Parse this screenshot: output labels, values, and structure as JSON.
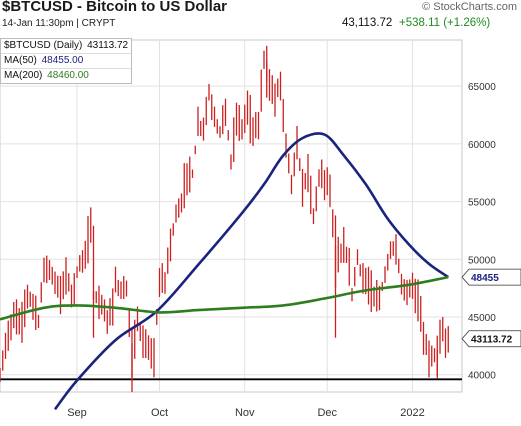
{
  "header": {
    "title": "$BTCUSD - Bitcoin to US Dollar",
    "brand": "© StockCharts.com",
    "date_line": "14-Jan 11:30pm | CRYPT",
    "last_price": "43,113.72",
    "change": "+538.11 (+1.26%)"
  },
  "legend": {
    "main_label": "$BTCUSD (Daily)",
    "main_value": "43113.72",
    "ma50_label": "MA(50)",
    "ma50_value": "48455.00",
    "ma200_label": "MA(200)",
    "ma200_value": "48460.00"
  },
  "price_tags": {
    "ma50": "48455",
    "last": "43113.72"
  },
  "colors": {
    "candle": "#cc1f1f",
    "ma50": "#1a237e",
    "ma200": "#2e7d1e",
    "change_positive": "#1f8a1f",
    "support_line": "#000000"
  },
  "chart_data": {
    "type": "line",
    "y_axis_side": "right",
    "ylim": [
      38500,
      69000
    ],
    "yticks": [
      "65000",
      "60000",
      "55000",
      "50000",
      "45000",
      "40000"
    ],
    "ytick_values": [
      65000,
      60000,
      55000,
      50000,
      45000,
      40000
    ],
    "x_range": [
      "2021-08-04",
      "2022-01-19"
    ],
    "xticks": [
      {
        "label": "Sep",
        "date": "2021-09-01"
      },
      {
        "label": "Oct",
        "date": "2021-10-01"
      },
      {
        "label": "Nov",
        "date": "2021-11-01"
      },
      {
        "label": "Dec",
        "date": "2021-12-01"
      },
      {
        "label": "2022",
        "date": "2022-01-01"
      }
    ],
    "grid": true,
    "horizontal_line": 39600,
    "price_series": [
      [
        "2021-08-04",
        39800
      ],
      [
        "2021-08-06",
        42500
      ],
      [
        "2021-08-08",
        44200
      ],
      [
        "2021-08-10",
        45300
      ],
      [
        "2021-08-12",
        44500
      ],
      [
        "2021-08-14",
        47000
      ],
      [
        "2021-08-16",
        46200
      ],
      [
        "2021-08-18",
        44700
      ],
      [
        "2021-08-20",
        49300
      ],
      [
        "2021-08-22",
        49200
      ],
      [
        "2021-08-24",
        48000
      ],
      [
        "2021-08-26",
        46900
      ],
      [
        "2021-08-28",
        48800
      ],
      [
        "2021-08-30",
        47000
      ],
      [
        "2021-09-01",
        48800
      ],
      [
        "2021-09-03",
        50000
      ],
      [
        "2021-09-05",
        51700
      ],
      [
        "2021-09-06",
        52600
      ],
      [
        "2021-09-07",
        46800
      ],
      [
        "2021-09-09",
        46400
      ],
      [
        "2021-09-11",
        45200
      ],
      [
        "2021-09-13",
        44900
      ],
      [
        "2021-09-15",
        48000
      ],
      [
        "2021-09-17",
        47300
      ],
      [
        "2021-09-19",
        47200
      ],
      [
        "2021-09-21",
        40700
      ],
      [
        "2021-09-23",
        44900
      ],
      [
        "2021-09-25",
        42700
      ],
      [
        "2021-09-27",
        42200
      ],
      [
        "2021-09-29",
        41500
      ],
      [
        "2021-10-01",
        48100
      ],
      [
        "2021-10-03",
        48200
      ],
      [
        "2021-10-05",
        51500
      ],
      [
        "2021-10-07",
        53800
      ],
      [
        "2021-10-09",
        54900
      ],
      [
        "2021-10-11",
        57500
      ],
      [
        "2021-10-13",
        57400
      ],
      [
        "2021-10-15",
        61500
      ],
      [
        "2021-10-17",
        61500
      ],
      [
        "2021-10-19",
        64300
      ],
      [
        "2021-10-21",
        62200
      ],
      [
        "2021-10-23",
        61100
      ],
      [
        "2021-10-25",
        63000
      ],
      [
        "2021-10-27",
        58500
      ],
      [
        "2021-10-29",
        62200
      ],
      [
        "2021-10-31",
        61300
      ],
      [
        "2021-11-02",
        63200
      ],
      [
        "2021-11-04",
        61300
      ],
      [
        "2021-11-06",
        61500
      ],
      [
        "2021-11-08",
        67500
      ],
      [
        "2021-11-10",
        65000
      ],
      [
        "2021-11-12",
        64100
      ],
      [
        "2021-11-14",
        65400
      ],
      [
        "2021-11-16",
        60000
      ],
      [
        "2021-11-18",
        56800
      ],
      [
        "2021-11-20",
        59700
      ],
      [
        "2021-11-22",
        56300
      ],
      [
        "2021-11-24",
        57500
      ],
      [
        "2021-11-26",
        53700
      ],
      [
        "2021-11-28",
        57200
      ],
      [
        "2021-11-30",
        56900
      ],
      [
        "2021-12-02",
        56500
      ],
      [
        "2021-12-04",
        49300
      ],
      [
        "2021-12-06",
        50500
      ],
      [
        "2021-12-08",
        50600
      ],
      [
        "2021-12-10",
        47100
      ],
      [
        "2021-12-12",
        50100
      ],
      [
        "2021-12-14",
        48300
      ],
      [
        "2021-12-16",
        47600
      ],
      [
        "2021-12-18",
        46700
      ],
      [
        "2021-12-20",
        46700
      ],
      [
        "2021-12-22",
        48600
      ],
      [
        "2021-12-24",
        50800
      ],
      [
        "2021-12-26",
        50800
      ],
      [
        "2021-12-28",
        47600
      ],
      [
        "2021-12-30",
        47100
      ],
      [
        "2022-01-01",
        47700
      ],
      [
        "2022-01-03",
        46400
      ],
      [
        "2022-01-05",
        43500
      ],
      [
        "2022-01-07",
        41600
      ],
      [
        "2022-01-09",
        41900
      ],
      [
        "2022-01-10",
        41800
      ],
      [
        "2022-01-12",
        43900
      ],
      [
        "2022-01-13",
        42600
      ],
      [
        "2022-01-14",
        43114
      ]
    ],
    "series": [
      {
        "name": "MA(50)",
        "color": "#1a237e",
        "points": [
          [
            "2021-08-24",
            37000
          ],
          [
            "2021-09-01",
            39500
          ],
          [
            "2021-09-15",
            43000
          ],
          [
            "2021-09-30",
            45500
          ],
          [
            "2021-10-15",
            49500
          ],
          [
            "2021-10-31",
            54000
          ],
          [
            "2021-11-08",
            56500
          ],
          [
            "2021-11-15",
            59000
          ],
          [
            "2021-11-22",
            60500
          ],
          [
            "2021-11-30",
            60800
          ],
          [
            "2021-12-07",
            59000
          ],
          [
            "2021-12-15",
            56500
          ],
          [
            "2021-12-23",
            53500
          ],
          [
            "2021-12-31",
            51200
          ],
          [
            "2022-01-07",
            49600
          ],
          [
            "2022-01-14",
            48455
          ]
        ]
      },
      {
        "name": "MA(200)",
        "color": "#2e7d1e",
        "points": [
          [
            "2021-08-04",
            44800
          ],
          [
            "2021-08-20",
            45800
          ],
          [
            "2021-09-01",
            46000
          ],
          [
            "2021-09-15",
            45800
          ],
          [
            "2021-10-01",
            45400
          ],
          [
            "2021-10-15",
            45600
          ],
          [
            "2021-10-31",
            45800
          ],
          [
            "2021-11-15",
            46000
          ],
          [
            "2021-11-30",
            46600
          ],
          [
            "2021-12-15",
            47300
          ],
          [
            "2021-12-31",
            47800
          ],
          [
            "2022-01-14",
            48460
          ]
        ]
      }
    ]
  }
}
